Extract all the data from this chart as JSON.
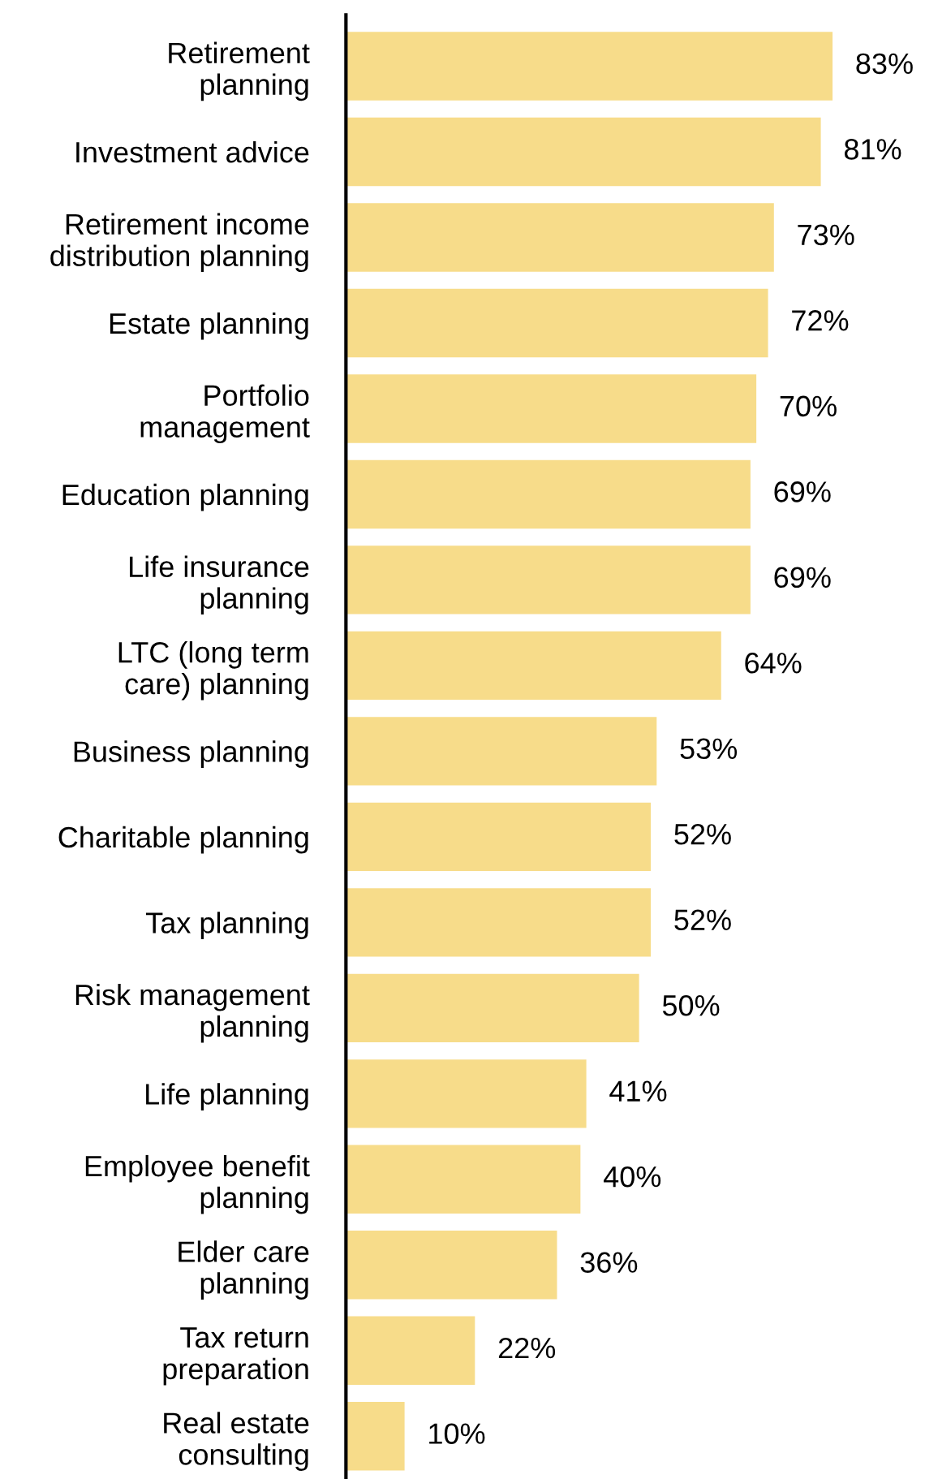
{
  "chart_data": {
    "type": "bar",
    "orientation": "horizontal",
    "categories": [
      "Retirement\nplanning",
      "Investment advice",
      "Retirement income\ndistribution planning",
      "Estate planning",
      "Portfolio\nmanagement",
      "Education planning",
      "Life insurance\nplanning",
      "LTC (long term\ncare) planning",
      "Business planning",
      "Charitable planning",
      "Tax planning",
      "Risk management\nplanning",
      "Life planning",
      "Employee benefit\nplanning",
      "Elder care\nplanning",
      "Tax return\npreparation",
      "Real estate\nconsulting"
    ],
    "values": [
      83,
      81,
      73,
      72,
      70,
      69,
      69,
      64,
      53,
      52,
      52,
      50,
      41,
      40,
      36,
      22,
      10
    ],
    "value_labels": [
      "83%",
      "81%",
      "73%",
      "72%",
      "70%",
      "69%",
      "69%",
      "64%",
      "53%",
      "52%",
      "52%",
      "50%",
      "41%",
      "40%",
      "36%",
      "22%",
      "10%"
    ],
    "color": "#f7dc8a"
  }
}
